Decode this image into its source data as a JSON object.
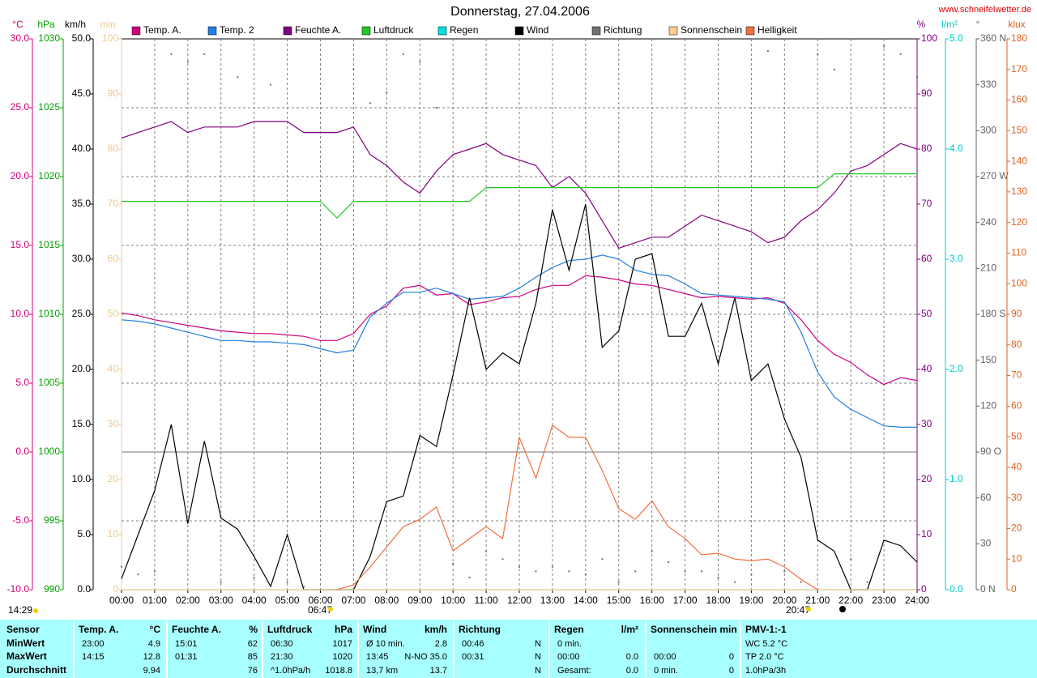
{
  "chart_data": {
    "type": "line",
    "title": "Donnerstag, 27.04.2006",
    "source": "www.schneifelwetter.de",
    "x": [
      0,
      0.5,
      1,
      1.5,
      2,
      2.5,
      3,
      3.5,
      4,
      4.5,
      5,
      5.5,
      6,
      6.5,
      7,
      7.5,
      8,
      8.5,
      9,
      9.5,
      10,
      10.5,
      11,
      11.5,
      12,
      12.5,
      13,
      13.5,
      14,
      14.5,
      15,
      15.5,
      16,
      16.5,
      17,
      17.5,
      18,
      18.5,
      19,
      19.5,
      20,
      20.5,
      21,
      21.5,
      22,
      22.5,
      23,
      23.5,
      24
    ],
    "xlim": [
      0,
      24
    ],
    "xticks": [
      {
        "value": 0,
        "label": "00:00"
      },
      {
        "value": 1,
        "label": "01:00"
      },
      {
        "value": 2,
        "label": "02:00"
      },
      {
        "value": 3,
        "label": "03:00"
      },
      {
        "value": 4,
        "label": "04:00"
      },
      {
        "value": 5,
        "label": "05:00"
      },
      {
        "value": 6,
        "label": "06:00"
      },
      {
        "value": 7,
        "label": "07:00"
      },
      {
        "value": 8,
        "label": "08:00"
      },
      {
        "value": 9,
        "label": "09:00"
      },
      {
        "value": 10,
        "label": "10:00"
      },
      {
        "value": 11,
        "label": "11:00"
      },
      {
        "value": 12,
        "label": "12:00"
      },
      {
        "value": 13,
        "label": "13:00"
      },
      {
        "value": 14,
        "label": "14:00"
      },
      {
        "value": 15,
        "label": "15:00"
      },
      {
        "value": 16,
        "label": "16:00"
      },
      {
        "value": 17,
        "label": "17:00"
      },
      {
        "value": 18,
        "label": "18:00"
      },
      {
        "value": 19,
        "label": "19:00"
      },
      {
        "value": 20,
        "label": "20:00"
      },
      {
        "value": 21,
        "label": "21:00"
      },
      {
        "value": 22,
        "label": "22:00"
      },
      {
        "value": 23,
        "label": "23:00"
      },
      {
        "value": 24,
        "label": "24:00"
      }
    ],
    "grid": true,
    "axes": [
      {
        "label": "°C",
        "color": "#d0007f",
        "lim": [
          -10,
          30
        ],
        "ticks": [
          {
            "value": -10,
            "label": "-10.0"
          },
          {
            "value": -5,
            "label": "-5.0"
          },
          {
            "value": 0,
            "label": "0.0"
          },
          {
            "value": 5,
            "label": "5.0"
          },
          {
            "value": 10,
            "label": "10.0"
          },
          {
            "value": 15,
            "label": "15.0"
          },
          {
            "value": 20,
            "label": "20.0"
          },
          {
            "value": 25,
            "label": "25.0"
          },
          {
            "value": 30,
            "label": "30.0"
          }
        ]
      },
      {
        "label": "hPa",
        "color": "#00a000",
        "lim": [
          990,
          1030
        ],
        "ticks": [
          990,
          995,
          1000,
          1005,
          1010,
          1015,
          1020,
          1025,
          1030
        ]
      },
      {
        "label": "km/h",
        "color": "#000000",
        "lim": [
          0,
          50
        ],
        "ticks": [
          {
            "value": 0,
            "label": "0.0"
          },
          {
            "value": 5,
            "label": "5.0"
          },
          {
            "value": 10,
            "label": "10.0"
          },
          {
            "value": 15,
            "label": "15.0"
          },
          {
            "value": 20,
            "label": "20.0"
          },
          {
            "value": 25,
            "label": "25.0"
          },
          {
            "value": 30,
            "label": "30.0"
          },
          {
            "value": 35,
            "label": "35.0"
          },
          {
            "value": 40,
            "label": "40.0"
          },
          {
            "value": 45,
            "label": "45.0"
          },
          {
            "value": 50,
            "label": "50.0"
          }
        ]
      },
      {
        "label": "min",
        "color": "#f0c890",
        "lim": [
          0,
          100
        ],
        "ticks": [
          0,
          10,
          20,
          30,
          40,
          50,
          60,
          70,
          80,
          90,
          100
        ]
      },
      {
        "label": "%",
        "color": "#800080",
        "lim": [
          0,
          100
        ],
        "ticks": [
          0,
          10,
          20,
          30,
          40,
          50,
          60,
          70,
          80,
          90,
          100
        ]
      },
      {
        "label": "l/m²",
        "color": "#00c8c8",
        "lim": [
          0,
          5
        ],
        "ticks": [
          {
            "value": 0,
            "label": "0.0"
          },
          {
            "value": 1,
            "label": "1.0"
          },
          {
            "value": 2,
            "label": "2.0"
          },
          {
            "value": 3,
            "label": "3.0"
          },
          {
            "value": 4,
            "label": "4.0"
          },
          {
            "value": 5,
            "label": "5.0"
          }
        ]
      },
      {
        "label": "°",
        "color": "#606060",
        "lim": [
          0,
          360
        ],
        "ticks": [
          {
            "value": 0,
            "label": "0 N"
          },
          30,
          60,
          {
            "value": 90,
            "label": "90 O"
          },
          120,
          150,
          {
            "value": 180,
            "label": "180 S"
          },
          210,
          240,
          {
            "value": 270,
            "label": "270 W"
          },
          300,
          330,
          {
            "value": 360,
            "label": "360 N"
          }
        ]
      },
      {
        "label": "klux",
        "color": "#e06020",
        "lim": [
          0,
          180
        ],
        "ticks": [
          0,
          10,
          20,
          30,
          40,
          50,
          60,
          70,
          80,
          90,
          100,
          110,
          120,
          130,
          140,
          150,
          160,
          170,
          180
        ]
      }
    ],
    "series": [
      {
        "name": "Temp. A.",
        "color": "#d0007f",
        "axis": 0,
        "values": [
          10.1,
          9.9,
          9.6,
          9.4,
          9.2,
          9.0,
          8.8,
          8.7,
          8.6,
          8.6,
          8.5,
          8.4,
          8.1,
          8.1,
          8.6,
          10.0,
          10.6,
          11.9,
          12.1,
          11.4,
          11.5,
          10.7,
          10.9,
          11.2,
          11.3,
          11.8,
          12.1,
          12.1,
          12.8,
          12.7,
          12.5,
          12.2,
          12.1,
          11.8,
          11.5,
          11.2,
          11.3,
          11.2,
          11.1,
          11.2,
          10.8,
          9.6,
          8.1,
          7.1,
          6.5,
          5.6,
          4.9,
          5.4,
          5.2
        ]
      },
      {
        "name": "Temp. 2",
        "color": "#2080e0",
        "axis": 0,
        "values": [
          9.6,
          9.5,
          9.3,
          9.0,
          8.7,
          8.4,
          8.1,
          8.1,
          8.0,
          8.0,
          7.9,
          7.8,
          7.5,
          7.2,
          7.4,
          9.8,
          10.8,
          11.6,
          11.6,
          11.9,
          11.5,
          11.1,
          11.2,
          11.3,
          11.9,
          12.7,
          13.4,
          13.9,
          14.0,
          14.3,
          14.0,
          13.2,
          12.9,
          12.8,
          12.2,
          11.5,
          11.4,
          11.3,
          11.2,
          11.1,
          10.9,
          8.7,
          5.8,
          4.0,
          3.1,
          2.5,
          1.9,
          1.8,
          1.8
        ]
      },
      {
        "name": "Feuchte A.",
        "color": "#800080",
        "axis": 4,
        "values": [
          82,
          83,
          84,
          85,
          83,
          84,
          84,
          84,
          85,
          85,
          85,
          83,
          83,
          83,
          84,
          79,
          77,
          74,
          72,
          76,
          79,
          80,
          81,
          79,
          78,
          77,
          73,
          75,
          72,
          67,
          62,
          63,
          64,
          64,
          66,
          68,
          67,
          66,
          65,
          63,
          64,
          67,
          69,
          72,
          76,
          77,
          79,
          81,
          80
        ]
      },
      {
        "name": "Luftdruck",
        "color": "#20c820",
        "axis": 1,
        "values": [
          1018.2,
          1018.2,
          1018.2,
          1018.2,
          1018.2,
          1018.2,
          1018.2,
          1018.2,
          1018.2,
          1018.2,
          1018.2,
          1018.2,
          1018.2,
          1017,
          1018.2,
          1018.2,
          1018.2,
          1018.2,
          1018.2,
          1018.2,
          1018.2,
          1018.2,
          1019.2,
          1019.2,
          1019.2,
          1019.2,
          1019.2,
          1019.2,
          1019.2,
          1019.2,
          1019.2,
          1019.2,
          1019.2,
          1019.2,
          1019.2,
          1019.2,
          1019.2,
          1019.2,
          1019.2,
          1019.2,
          1019.2,
          1019.2,
          1019.2,
          1020.2,
          1020.2,
          1020.2,
          1020.2,
          1020.2,
          1020.2
        ]
      },
      {
        "name": "Regen",
        "color": "#00e0e0",
        "axis": 5,
        "values": [
          0,
          0,
          0,
          0,
          0,
          0,
          0,
          0,
          0,
          0,
          0,
          0,
          0,
          0,
          0,
          0,
          0,
          0,
          0,
          0,
          0,
          0,
          0,
          0,
          0,
          0,
          0,
          0,
          0,
          0,
          0,
          0,
          0,
          0,
          0,
          0,
          0,
          0,
          0,
          0,
          0,
          0,
          0,
          0,
          0,
          0,
          0,
          0,
          0
        ]
      },
      {
        "name": "Wind",
        "color": "#000000",
        "axis": 2,
        "values": [
          1.0,
          5.0,
          9.0,
          15.0,
          6.0,
          13.5,
          6.5,
          5.5,
          3.0,
          0.3,
          5.0,
          0,
          0,
          0,
          0,
          3.0,
          8.0,
          8.5,
          14.0,
          13.0,
          19.5,
          26.5,
          20.0,
          21.5,
          20.5,
          26.0,
          34.5,
          29.0,
          35.0,
          22.0,
          23.5,
          30.0,
          30.5,
          23.0,
          23.0,
          26.0,
          20.5,
          26.5,
          19.0,
          20.5,
          15.5,
          12.0,
          4.5,
          3.5,
          0,
          0,
          4.5,
          4.0,
          2.5
        ]
      },
      {
        "name": "Richtung",
        "color": "#707070",
        "axis": 6,
        "marker": "dot",
        "values": [
          15,
          10,
          12,
          350,
          345,
          350,
          5,
          335,
          8,
          330,
          5,
          2,
          null,
          null,
          340,
          318,
          325,
          350,
          345,
          315,
          17,
          8,
          25,
          20,
          15,
          12,
          15,
          12,
          10,
          20,
          5,
          12,
          25,
          18,
          12,
          12,
          8,
          5,
          10,
          352,
          12,
          5,
          350,
          340,
          20,
          5,
          355,
          350,
          335
        ]
      },
      {
        "name": "Sonnenschein",
        "color": "#ffd090",
        "axis": 3,
        "values": [
          0,
          0,
          0,
          0,
          0,
          0,
          0,
          0,
          0,
          0,
          0,
          0,
          0,
          0,
          0,
          0,
          0,
          0,
          0,
          0,
          0,
          0,
          0,
          0,
          0,
          0,
          0,
          0,
          0,
          0,
          0,
          0,
          0,
          0,
          0,
          0,
          0,
          0,
          0,
          0,
          0,
          0,
          0,
          0,
          0,
          0,
          0,
          0,
          0
        ]
      },
      {
        "name": "Helligkeit",
        "color": "#f07040",
        "axis": 7,
        "values": [
          null,
          null,
          null,
          null,
          null,
          null,
          null,
          null,
          null,
          null,
          null,
          null,
          null,
          0,
          1.6,
          7.4,
          14,
          20.6,
          23,
          27,
          12.7,
          16.7,
          20.6,
          16.7,
          49.8,
          36.5,
          53.7,
          49.8,
          49.8,
          39,
          26.5,
          23,
          29,
          20.6,
          16.7,
          11.4,
          11.9,
          10,
          9.5,
          10,
          7.4,
          3.4,
          0,
          null,
          null,
          null,
          null,
          null,
          null
        ]
      }
    ],
    "annotations": [
      "06:47",
      "20:47",
      "14:29"
    ]
  },
  "table": {
    "row_labels_header": "Sensor",
    "row_labels": [
      "MinWert",
      "MaxWert",
      "Durchschnitt"
    ],
    "columns": [
      {
        "header": "Temp. A.",
        "unit": "°C",
        "rows": [
          [
            "23:00",
            "4.9"
          ],
          [
            "14:15",
            "12.8"
          ],
          [
            null,
            "9.94"
          ]
        ]
      },
      {
        "header": "Feuchte A.",
        "unit": "%",
        "rows": [
          [
            "15:01",
            "62"
          ],
          [
            "01:31",
            "85"
          ],
          [
            null,
            "76"
          ]
        ]
      },
      {
        "header": "Luftdruck",
        "unit": "hPa",
        "rows": [
          [
            "06:30",
            "1017"
          ],
          [
            "21:30",
            "1020"
          ],
          [
            "^1.0hPa/h",
            "1018.8"
          ]
        ]
      },
      {
        "header": "Wind",
        "unit": "km/h",
        "rows": [
          [
            "Ø 10 min.",
            "2.8"
          ],
          [
            "13:45",
            "N-NO 35.0"
          ],
          [
            "13,7 km",
            "13.7"
          ]
        ]
      },
      {
        "header": "Richtung",
        "rows": [
          [
            "00:46",
            "N"
          ],
          [
            "00:31",
            "N"
          ],
          [
            null,
            "N"
          ]
        ]
      },
      {
        "header": "Regen",
        "unit": "l/m²",
        "rows": [
          [
            "0 min.",
            null
          ],
          [
            "00:00",
            "0.0"
          ],
          [
            "Gesamt:",
            "0.0"
          ]
        ]
      },
      {
        "header": "Sonnenschein min",
        "rows": [
          [
            null,
            null
          ],
          [
            "00:00",
            "0"
          ],
          [
            "0 min.",
            "0"
          ]
        ]
      },
      {
        "header": "PMV-1:-1",
        "rows": [
          [
            "WC 5.2 °C"
          ],
          [
            "TP 2.0 °C"
          ],
          [
            "1.0hPa/3h"
          ]
        ]
      }
    ]
  }
}
